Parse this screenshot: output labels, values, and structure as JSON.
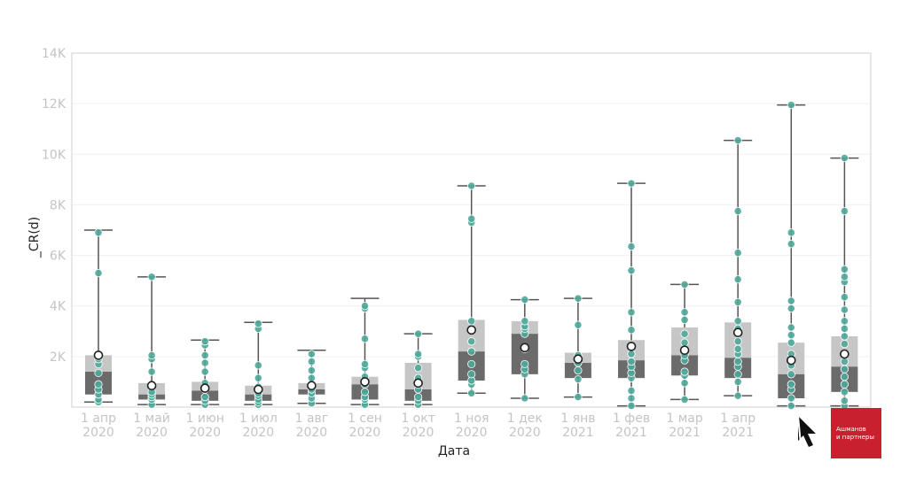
{
  "chart_data": {
    "type": "box",
    "xlabel": "Дата",
    "ylabel": "_CR(d)",
    "ylim": [
      0,
      14000
    ],
    "y_ticks": [
      "",
      "2K",
      "4K",
      "6K",
      "8K",
      "10K",
      "12K",
      "14K"
    ],
    "grid": true,
    "colors": {
      "upper_box": "#c6c6c6",
      "lower_box": "#6b6b6b",
      "point": "#4fa89a",
      "mean": "#ffffff",
      "whisker": "#555555",
      "tick": "#c4c4c4"
    },
    "categories": [
      {
        "label": [
          "1 апр",
          "2020"
        ],
        "min": 200,
        "q1": 500,
        "median": 1400,
        "q3": 2050,
        "max": 7000,
        "mean": 2050,
        "points": [
          200,
          300,
          500,
          700,
          900,
          1350,
          1700,
          1900,
          2000,
          5300,
          6900
        ]
      },
      {
        "label": [
          "1 май",
          "2020"
        ],
        "min": 100,
        "q1": 300,
        "median": 500,
        "q3": 950,
        "max": 5150,
        "mean": 850,
        "points": [
          100,
          300,
          400,
          500,
          600,
          1400,
          1900,
          2050,
          5150
        ]
      },
      {
        "label": [
          "1 июн",
          "2020"
        ],
        "min": 100,
        "q1": 250,
        "median": 650,
        "q3": 1000,
        "max": 2650,
        "mean": 750,
        "points": [
          100,
          250,
          400,
          700,
          950,
          1400,
          1750,
          2050,
          2450,
          2600
        ]
      },
      {
        "label": [
          "1 июл",
          "2020"
        ],
        "min": 100,
        "q1": 250,
        "median": 500,
        "q3": 850,
        "max": 3350,
        "mean": 700,
        "points": [
          100,
          200,
          300,
          450,
          550,
          800,
          1150,
          1650,
          3100,
          3300
        ]
      },
      {
        "label": [
          "1 авг",
          "2020"
        ],
        "min": 150,
        "q1": 500,
        "median": 700,
        "q3": 950,
        "max": 2250,
        "mean": 850,
        "points": [
          150,
          350,
          550,
          700,
          900,
          1150,
          1450,
          1800,
          2100
        ]
      },
      {
        "label": [
          "1 сен",
          "2020"
        ],
        "min": 100,
        "q1": 300,
        "median": 900,
        "q3": 1200,
        "max": 4300,
        "mean": 1000,
        "points": [
          100,
          300,
          400,
          600,
          900,
          1200,
          1550,
          1700,
          2700,
          3900,
          4000
        ]
      },
      {
        "label": [
          "1 окт",
          "2020"
        ],
        "min": 100,
        "q1": 250,
        "median": 700,
        "q3": 1750,
        "max": 2900,
        "mean": 950,
        "points": [
          100,
          250,
          400,
          700,
          900,
          1150,
          1550,
          2000,
          2100,
          2900
        ]
      },
      {
        "label": [
          "1 ноя",
          "2020"
        ],
        "min": 550,
        "q1": 1050,
        "median": 2200,
        "q3": 3450,
        "max": 8750,
        "mean": 3050,
        "points": [
          550,
          900,
          1050,
          1300,
          1700,
          2200,
          2600,
          3050,
          3400,
          7300,
          7450,
          8750
        ]
      },
      {
        "label": [
          "1 дек",
          "2020"
        ],
        "min": 350,
        "q1": 1300,
        "median": 2900,
        "q3": 3400,
        "max": 4250,
        "mean": 2350,
        "points": [
          350,
          1300,
          1500,
          1700,
          2300,
          2900,
          3100,
          3200,
          3400,
          4250
        ]
      },
      {
        "label": [
          "1 янв",
          "2021"
        ],
        "min": 400,
        "q1": 1150,
        "median": 1750,
        "q3": 2150,
        "max": 4300,
        "mean": 1900,
        "points": [
          400,
          1100,
          1450,
          1750,
          1900,
          2050,
          3250,
          4300
        ]
      },
      {
        "label": [
          "1 фев",
          "2021"
        ],
        "min": 50,
        "q1": 1150,
        "median": 1850,
        "q3": 2650,
        "max": 8850,
        "mean": 2400,
        "points": [
          50,
          350,
          650,
          1150,
          1350,
          1600,
          1800,
          2100,
          2400,
          3050,
          3750,
          5400,
          6350,
          8850
        ]
      },
      {
        "label": [
          "1 мар",
          "2021"
        ],
        "min": 300,
        "q1": 1250,
        "median": 2050,
        "q3": 3150,
        "max": 4850,
        "mean": 2250,
        "points": [
          300,
          950,
          1250,
          1400,
          1850,
          2050,
          2250,
          2550,
          2900,
          3450,
          3750,
          4850
        ]
      },
      {
        "label": [
          "1 апр",
          "2021"
        ],
        "min": 450,
        "q1": 1150,
        "median": 1950,
        "q3": 3350,
        "max": 10550,
        "mean": 2950,
        "points": [
          450,
          1000,
          1300,
          1600,
          1800,
          2100,
          2300,
          2600,
          3100,
          3400,
          4150,
          5050,
          6100,
          7750,
          10550
        ]
      },
      {
        "label": [
          "",
          ""
        ],
        "min": 50,
        "q1": 350,
        "median": 1300,
        "q3": 2550,
        "max": 11950,
        "mean": 1850,
        "points": [
          50,
          350,
          700,
          900,
          1300,
          1650,
          2100,
          2550,
          2850,
          3150,
          3900,
          4200,
          6450,
          6900,
          11950
        ]
      },
      {
        "label": [
          "",
          ""
        ],
        "min": 50,
        "q1": 600,
        "median": 1600,
        "q3": 2800,
        "max": 9850,
        "mean": 2100,
        "points": [
          50,
          250,
          600,
          900,
          1200,
          1500,
          1800,
          2100,
          2500,
          2800,
          3100,
          3400,
          3850,
          4350,
          4950,
          5150,
          5450,
          7750,
          9850
        ]
      }
    ]
  },
  "logo": {
    "icon": "arrow-cursor-logo-icon",
    "line1": "Ашманов",
    "line2": "и партнеры",
    "color": "#c8202f"
  }
}
